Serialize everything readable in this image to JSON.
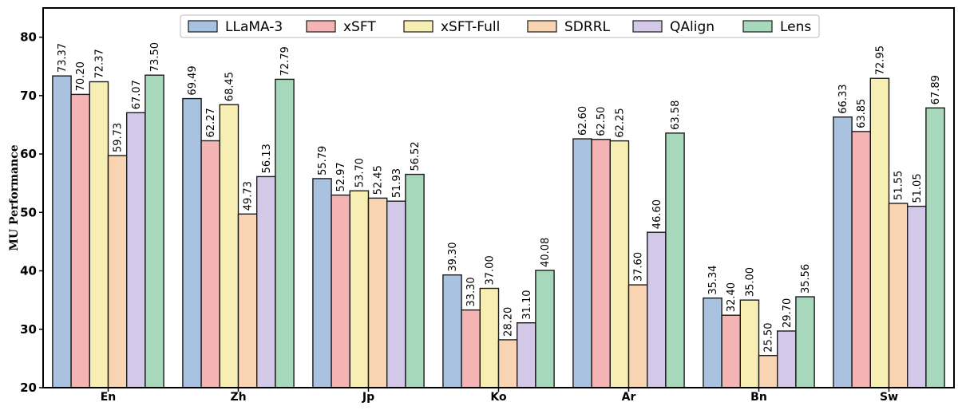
{
  "chart_data": {
    "type": "bar",
    "title": "",
    "xlabel": "",
    "ylabel": "MU Performance",
    "ylim": [
      20,
      85
    ],
    "yticks": [
      20,
      30,
      40,
      50,
      60,
      70,
      80
    ],
    "categories": [
      "En",
      "Zh",
      "Jp",
      "Ko",
      "Ar",
      "Bn",
      "Sw"
    ],
    "legend_position": "top-center",
    "series": [
      {
        "name": "LLaMA-3",
        "color": "#a8c2e0",
        "values": [
          73.37,
          69.49,
          55.79,
          39.3,
          62.6,
          35.34,
          66.33
        ],
        "labels": [
          "73.37",
          "69.49",
          "55.79",
          "39.30",
          "62.60",
          "35.34",
          "66.33"
        ]
      },
      {
        "name": "xSFT",
        "color": "#f4b4b4",
        "values": [
          70.2,
          62.27,
          52.97,
          33.3,
          62.5,
          32.4,
          63.85
        ],
        "labels": [
          "70.20",
          "62.27",
          "52.97",
          "33.30",
          "62.50",
          "32.40",
          "63.85"
        ]
      },
      {
        "name": "xSFT-Full",
        "color": "#f6eeb2",
        "values": [
          72.37,
          68.45,
          53.7,
          37.0,
          62.25,
          35.0,
          72.95
        ],
        "labels": [
          "72.37",
          "68.45",
          "53.70",
          "37.00",
          "62.25",
          "35.00",
          "72.95"
        ]
      },
      {
        "name": "SDRRL",
        "color": "#f8d4b2",
        "values": [
          59.73,
          49.73,
          52.45,
          28.2,
          37.6,
          25.5,
          51.55
        ],
        "labels": [
          "59.73",
          "49.73",
          "52.45",
          "28.20",
          "37.60",
          "25.50",
          "51.55"
        ]
      },
      {
        "name": "QAlign",
        "color": "#d4c8e8",
        "values": [
          67.07,
          56.13,
          51.93,
          31.1,
          46.6,
          29.7,
          51.05
        ],
        "labels": [
          "67.07",
          "56.13",
          "51.93",
          "31.10",
          "46.60",
          "29.70",
          "51.05"
        ]
      },
      {
        "name": "Lens",
        "color": "#a8d8bc",
        "values": [
          73.5,
          72.79,
          56.52,
          40.08,
          63.58,
          35.56,
          67.89
        ],
        "labels": [
          "73.50",
          "72.79",
          "56.52",
          "40.08",
          "63.58",
          "35.56",
          "67.89"
        ]
      }
    ]
  }
}
